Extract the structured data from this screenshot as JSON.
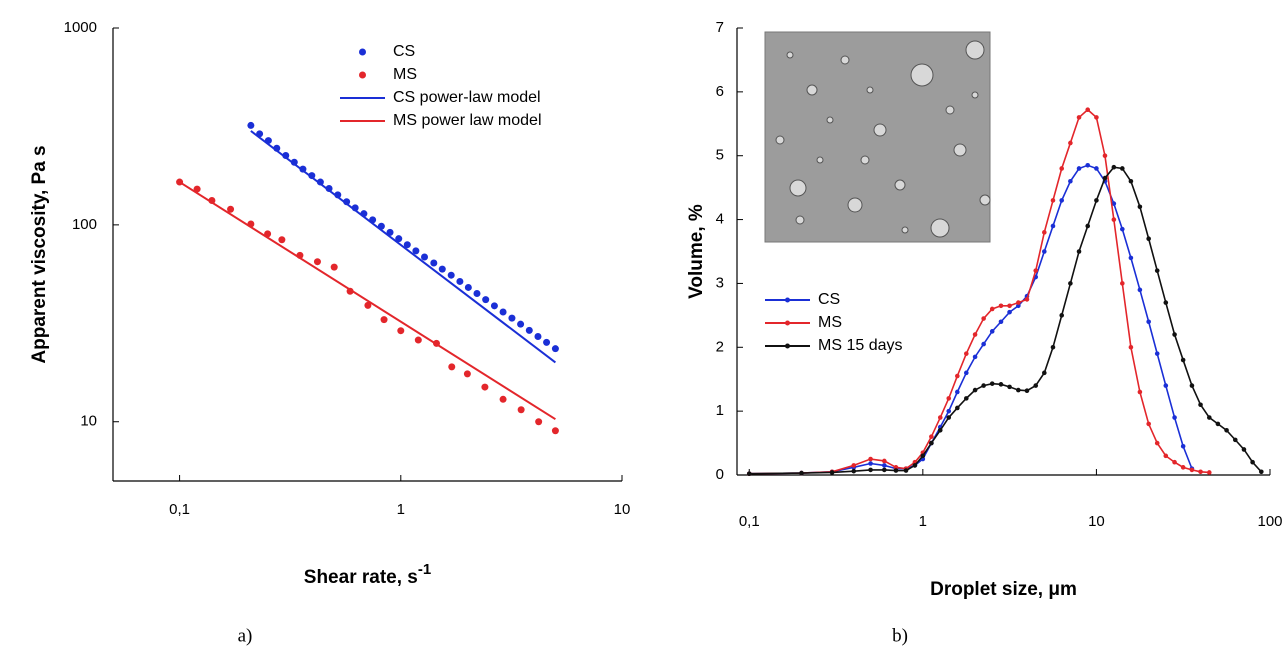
{
  "chart_data": [
    {
      "type": "scatter",
      "x_label": "Shear rate, s",
      "x_label_superscript": "-1",
      "y_label": "Apparent viscosity, Pa s",
      "caption": "a)",
      "xscale": "log",
      "yscale": "log",
      "xlim": [
        0.05,
        10
      ],
      "ylim": [
        5,
        1000
      ],
      "xticks": [
        {
          "value": 0.1,
          "label": "0,1"
        },
        1,
        10
      ],
      "yticks": [
        10,
        100,
        1000
      ],
      "legend": "upper right",
      "series": [
        {
          "name": "CS",
          "color": "#1a2fd6",
          "mode": "markers",
          "x": [
            0.21,
            0.23,
            0.252,
            0.275,
            0.302,
            0.33,
            0.361,
            0.396,
            0.433,
            0.474,
            0.519,
            0.569,
            0.622,
            0.681,
            0.746,
            0.817,
            0.894,
            0.979,
            1.07,
            1.17,
            1.28,
            1.41,
            1.54,
            1.69,
            1.85,
            2.02,
            2.21,
            2.42,
            2.65,
            2.9,
            3.18,
            3.48,
            3.81,
            4.17,
            4.56,
            5.0
          ],
          "values": [
            320,
            290,
            268,
            245,
            225,
            208,
            192,
            178,
            165,
            153,
            142,
            131,
            122,
            114,
            106,
            98.4,
            91.6,
            85.1,
            79.3,
            73.8,
            68.7,
            64.0,
            59.6,
            55.5,
            51.6,
            48.1,
            44.8,
            41.7,
            38.8,
            36.1,
            33.6,
            31.3,
            29.1,
            27.1,
            25.3,
            23.5
          ]
        },
        {
          "name": "MS",
          "color": "#e3262b",
          "mode": "markers",
          "x": [
            0.1,
            0.12,
            0.14,
            0.17,
            0.21,
            0.25,
            0.29,
            0.35,
            0.42,
            0.5,
            0.59,
            0.71,
            0.84,
            1.0,
            1.2,
            1.45,
            1.7,
            2.0,
            2.4,
            2.9,
            3.5,
            4.2,
            5.0
          ],
          "values": [
            165,
            152,
            133,
            120,
            101,
            90,
            84,
            70,
            65,
            61,
            46,
            39,
            33,
            29,
            26,
            25,
            19,
            17.5,
            15,
            13,
            11.5,
            10,
            9
          ]
        },
        {
          "name": "CS power-law model",
          "color": "#1a2fd6",
          "mode": "line",
          "x": [
            0.21,
            5.0
          ],
          "values": [
            300,
            20
          ]
        },
        {
          "name": "MS power law model",
          "color": "#e3262b",
          "mode": "line",
          "x": [
            0.1,
            5.0
          ],
          "values": [
            165,
            10.3
          ]
        }
      ]
    },
    {
      "type": "line",
      "x_label": "Droplet size, μm",
      "y_label": "Volume, %",
      "caption": "b)",
      "xscale": "log",
      "yscale": "linear",
      "xlim": [
        0.085,
        100
      ],
      "ylim": [
        0,
        7
      ],
      "xticks": [
        {
          "value": 0.1,
          "label": "0,1"
        },
        1,
        10,
        100
      ],
      "yticks": [
        0,
        1,
        2,
        3,
        4,
        5,
        6,
        7
      ],
      "legend": "center left",
      "x": [
        0.1,
        0.2,
        0.3,
        0.4,
        0.5,
        0.6,
        0.7,
        0.8,
        0.9,
        1.0,
        1.12,
        1.26,
        1.41,
        1.58,
        1.78,
        2.0,
        2.24,
        2.51,
        2.82,
        3.16,
        3.55,
        3.98,
        4.47,
        5.01,
        5.62,
        6.31,
        7.08,
        7.94,
        8.91,
        10,
        11.2,
        12.6,
        14.1,
        15.8,
        17.8,
        20,
        22.4,
        25.1,
        28.2,
        31.6,
        35.5,
        39.8,
        44.7,
        50.1,
        56.2,
        63.1,
        70.8,
        79.4,
        89.1
      ],
      "series": [
        {
          "name": "CS",
          "color": "#1a2fd6",
          "mode": "line+markers",
          "values": [
            0.02,
            0.03,
            0.05,
            0.12,
            0.18,
            0.15,
            0.1,
            0.1,
            0.15,
            0.25,
            0.5,
            0.75,
            1.0,
            1.3,
            1.6,
            1.85,
            2.05,
            2.25,
            2.4,
            2.55,
            2.65,
            2.8,
            3.1,
            3.5,
            3.9,
            4.3,
            4.6,
            4.8,
            4.85,
            4.8,
            4.6,
            4.25,
            3.85,
            3.4,
            2.9,
            2.4,
            1.9,
            1.4,
            0.9,
            0.45,
            0.1,
            null,
            null,
            null,
            null,
            null,
            null,
            null,
            null
          ]
        },
        {
          "name": "MS",
          "color": "#e3262b",
          "mode": "line+markers",
          "values": [
            0.02,
            0.03,
            0.05,
            0.15,
            0.25,
            0.22,
            0.12,
            0.1,
            0.2,
            0.35,
            0.6,
            0.9,
            1.2,
            1.55,
            1.9,
            2.2,
            2.45,
            2.6,
            2.65,
            2.65,
            2.7,
            2.75,
            3.2,
            3.8,
            4.3,
            4.8,
            5.2,
            5.6,
            5.72,
            5.6,
            5.0,
            4.0,
            3.0,
            2.0,
            1.3,
            0.8,
            0.5,
            0.3,
            0.2,
            0.12,
            0.08,
            0.05,
            0.04,
            null,
            null,
            null,
            null,
            null,
            null
          ]
        },
        {
          "name": "MS 15 days",
          "color": "#111111",
          "mode": "line+markers",
          "values": [
            0.02,
            0.03,
            0.04,
            0.06,
            0.08,
            0.08,
            0.07,
            0.07,
            0.15,
            0.3,
            0.5,
            0.7,
            0.9,
            1.05,
            1.2,
            1.33,
            1.4,
            1.43,
            1.42,
            1.38,
            1.33,
            1.32,
            1.4,
            1.6,
            2.0,
            2.5,
            3.0,
            3.5,
            3.9,
            4.3,
            4.65,
            4.82,
            4.8,
            4.6,
            4.2,
            3.7,
            3.2,
            2.7,
            2.2,
            1.8,
            1.4,
            1.1,
            0.9,
            0.8,
            0.7,
            0.55,
            0.4,
            0.2,
            0.05
          ]
        }
      ]
    }
  ]
}
